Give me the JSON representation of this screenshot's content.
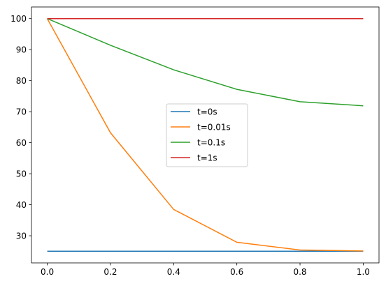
{
  "chart_data": {
    "type": "line",
    "title": "",
    "xlabel": "",
    "ylabel": "",
    "xlim": [
      -0.05,
      1.05
    ],
    "ylim": [
      21.25,
      103.75
    ],
    "x_ticks": [
      0.0,
      0.2,
      0.4,
      0.6,
      0.8,
      1.0
    ],
    "x_tick_labels": [
      "0.0",
      "0.2",
      "0.4",
      "0.6",
      "0.8",
      "1.0"
    ],
    "y_ticks": [
      30,
      40,
      50,
      60,
      70,
      80,
      90,
      100
    ],
    "y_tick_labels": [
      "30",
      "40",
      "50",
      "60",
      "70",
      "80",
      "90",
      "100"
    ],
    "grid": false,
    "legend_position": "center",
    "x": [
      0.0,
      0.2,
      0.4,
      0.6,
      0.8,
      1.0
    ],
    "series": [
      {
        "name": "t=0s",
        "color": "#1f77b4",
        "x": [
          0.0,
          1.0
        ],
        "values": [
          25,
          25
        ]
      },
      {
        "name": "t=0.01s",
        "color": "#ff7f0e",
        "x": [
          0.0,
          0.2,
          0.4,
          0.6,
          0.8,
          1.0
        ],
        "values": [
          100,
          63.2,
          38.5,
          27.9,
          25.4,
          25.1
        ]
      },
      {
        "name": "t=0.1s",
        "color": "#2ca02c",
        "x": [
          0.0,
          0.2,
          0.4,
          0.6,
          0.8,
          1.0
        ],
        "values": [
          100,
          91.4,
          83.5,
          77.2,
          73.2,
          71.9
        ]
      },
      {
        "name": "t=1s",
        "color": "#d62728",
        "x": [
          0.0,
          1.0
        ],
        "values": [
          100,
          100
        ]
      }
    ]
  }
}
